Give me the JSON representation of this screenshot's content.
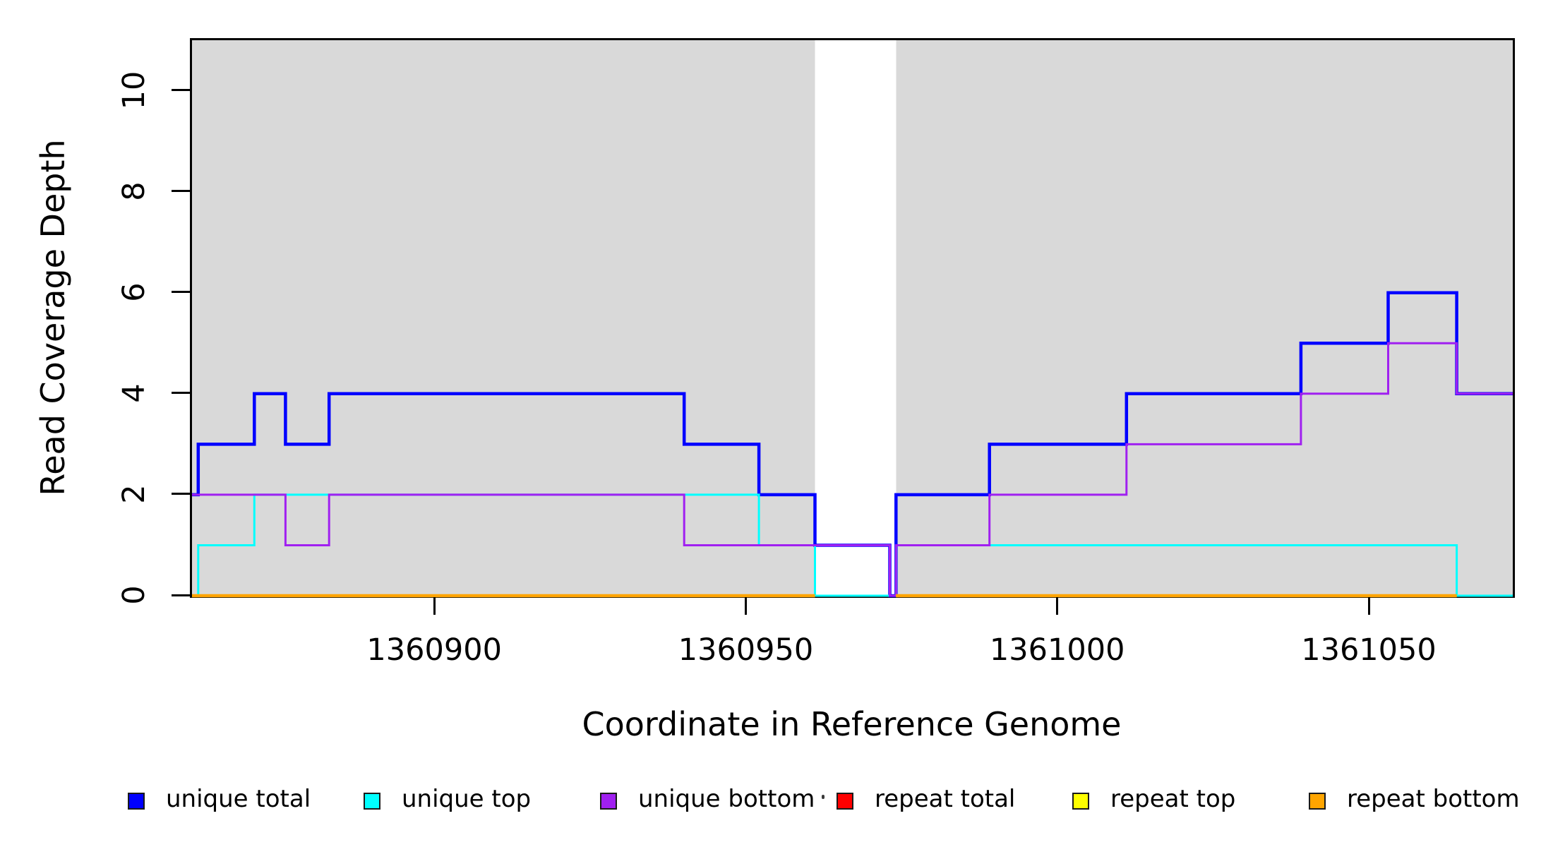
{
  "chart_data": {
    "type": "line",
    "subtype": "step-coverage",
    "title": "",
    "xlabel": "Coordinate in Reference Genome",
    "ylabel": "Read Coverage Depth",
    "xlim": [
      1360861,
      1361073
    ],
    "ylim": [
      0,
      11
    ],
    "x_ticks": [
      1360900,
      1360950,
      1361000,
      1361050
    ],
    "x_tick_labels": [
      "1360900",
      "1360950",
      "1361000",
      "1361050"
    ],
    "y_ticks": [
      0,
      2,
      4,
      6,
      8,
      10
    ],
    "y_tick_labels": [
      "0",
      "2",
      "4",
      "6",
      "8",
      "10"
    ],
    "grid": false,
    "shade_color": "#d9d9d9",
    "shaded_regions": [
      {
        "x0": 1360861,
        "x1": 1360961
      },
      {
        "x0": 1360974,
        "x1": 1361073
      }
    ],
    "series": [
      {
        "name": "unique total",
        "color": "#0000ff",
        "width": 4.5,
        "segments": [
          [
            [
              1360861,
              2
            ],
            [
              1360862,
              2
            ],
            [
              1360862,
              3
            ],
            [
              1360871,
              3
            ],
            [
              1360871,
              4
            ],
            [
              1360876,
              4
            ],
            [
              1360876,
              3
            ],
            [
              1360883,
              3
            ],
            [
              1360883,
              4
            ],
            [
              1360940,
              4
            ],
            [
              1360940,
              3
            ],
            [
              1360952,
              3
            ],
            [
              1360952,
              2
            ],
            [
              1360961,
              2
            ],
            [
              1360961,
              1
            ],
            [
              1360973,
              1
            ],
            [
              1360973,
              0
            ],
            [
              1360974,
              0
            ],
            [
              1360974,
              2
            ],
            [
              1360989,
              2
            ],
            [
              1360989,
              3
            ],
            [
              1361011,
              3
            ],
            [
              1361011,
              4
            ],
            [
              1361039,
              4
            ],
            [
              1361039,
              5
            ],
            [
              1361053,
              5
            ],
            [
              1361053,
              6
            ],
            [
              1361064,
              6
            ],
            [
              1361064,
              4
            ],
            [
              1361073,
              4
            ]
          ]
        ]
      },
      {
        "name": "unique top",
        "color": "#00ffff",
        "width": 3,
        "segments": [
          [
            [
              1360861,
              0
            ],
            [
              1360862,
              0
            ],
            [
              1360862,
              1
            ],
            [
              1360871,
              1
            ],
            [
              1360871,
              2
            ],
            [
              1360952,
              2
            ],
            [
              1360952,
              1
            ],
            [
              1360961,
              1
            ],
            [
              1360961,
              0
            ],
            [
              1360974,
              0
            ],
            [
              1360974,
              1
            ],
            [
              1361064,
              1
            ],
            [
              1361064,
              0
            ],
            [
              1361073,
              0
            ]
          ]
        ]
      },
      {
        "name": "unique bottom",
        "color": "#a020f0",
        "width": 3,
        "segments": [
          [
            [
              1360861,
              2
            ],
            [
              1360876,
              2
            ],
            [
              1360876,
              1
            ],
            [
              1360883,
              1
            ],
            [
              1360883,
              2
            ],
            [
              1360940,
              2
            ],
            [
              1360940,
              1
            ],
            [
              1360973,
              1
            ],
            [
              1360973,
              0
            ],
            [
              1360974,
              0
            ],
            [
              1360974,
              1
            ],
            [
              1360989,
              1
            ],
            [
              1360989,
              2
            ],
            [
              1361011,
              2
            ],
            [
              1361011,
              3
            ],
            [
              1361039,
              3
            ],
            [
              1361039,
              4
            ],
            [
              1361053,
              4
            ],
            [
              1361053,
              5
            ],
            [
              1361064,
              5
            ],
            [
              1361064,
              4
            ],
            [
              1361073,
              4
            ]
          ]
        ]
      },
      {
        "name": "repeat total",
        "color": "#ff0000",
        "width": 4,
        "segments": [
          [
            [
              1360861,
              0
            ],
            [
              1360961,
              0
            ]
          ],
          [
            [
              1360974,
              0
            ],
            [
              1361064,
              0
            ]
          ]
        ]
      },
      {
        "name": "repeat top",
        "color": "#ffff00",
        "width": 4,
        "segments": [
          [
            [
              1360861,
              0
            ],
            [
              1360961,
              0
            ]
          ],
          [
            [
              1360974,
              0
            ],
            [
              1361064,
              0
            ]
          ]
        ]
      },
      {
        "name": "repeat bottom",
        "color": "#ffa500",
        "width": 4.5,
        "segments": [
          [
            [
              1360861,
              0
            ],
            [
              1360961,
              0
            ]
          ],
          [
            [
              1360974,
              0
            ],
            [
              1361064,
              0
            ]
          ]
        ]
      }
    ]
  },
  "legend": {
    "items": [
      {
        "label": "unique total",
        "color": "#0000ff"
      },
      {
        "label": "unique top",
        "color": "#00ffff"
      },
      {
        "label": "unique bottom",
        "color": "#a020f0"
      },
      {
        "label": "repeat total",
        "color": "#ff0000"
      },
      {
        "label": "repeat top",
        "color": "#ffff00"
      },
      {
        "label": "repeat bottom",
        "color": "#ffa500"
      }
    ]
  }
}
